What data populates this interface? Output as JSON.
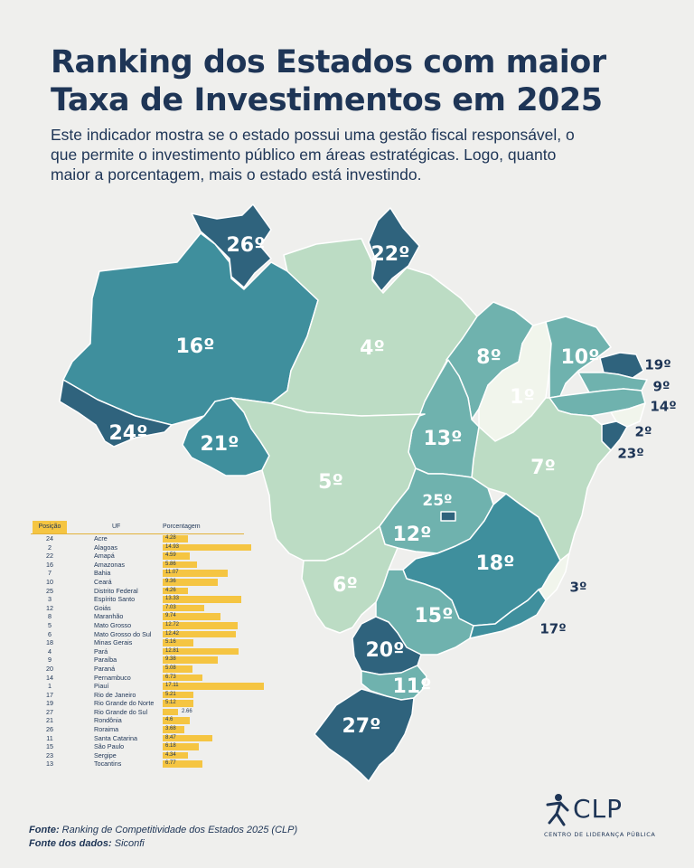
{
  "header": {
    "title_line1": "Ranking dos Estados com maior",
    "title_line2": "Taxa de Investimentos em 2025",
    "subtitle_line1": "Este indicador mostra se o estado possui uma gestão fiscal responsável, o",
    "subtitle_line2": "que permite o investimento público em áreas estratégicas. Logo, quanto",
    "subtitle_line3": "maior a porcentagem, mais o estado está investindo."
  },
  "colors": {
    "rank_1_5": "#f1f5ec",
    "rank_light": "#bcdcc4",
    "rank_mid": "#6fb2ae",
    "rank_teal": "#3f8f9d",
    "rank_dark": "#2f637d",
    "table_bar": "#f5c542",
    "title": "#1e3556"
  },
  "map_labels": [
    {
      "state": "Roraima",
      "label": "26º"
    },
    {
      "state": "Amapá",
      "label": "22º"
    },
    {
      "state": "Amazonas",
      "label": "16º"
    },
    {
      "state": "Pará",
      "label": "4º"
    },
    {
      "state": "Maranhão",
      "label": "8º"
    },
    {
      "state": "Ceará",
      "label": "10º"
    },
    {
      "state": "Rio Grande do Norte",
      "label": "19º"
    },
    {
      "state": "Paraíba",
      "label": "9º"
    },
    {
      "state": "Pernambuco",
      "label": "14º"
    },
    {
      "state": "Alagoas",
      "label": "2º"
    },
    {
      "state": "Sergipe",
      "label": "23º"
    },
    {
      "state": "Piauí",
      "label": "1º"
    },
    {
      "state": "Acre",
      "label": "24º"
    },
    {
      "state": "Rondônia",
      "label": "21º"
    },
    {
      "state": "Tocantins",
      "label": "13º"
    },
    {
      "state": "Bahia",
      "label": "7º"
    },
    {
      "state": "Mato Grosso",
      "label": "5º"
    },
    {
      "state": "Distrito Federal",
      "label": "25º"
    },
    {
      "state": "Goiás",
      "label": "12º"
    },
    {
      "state": "Minas Gerais",
      "label": "18º"
    },
    {
      "state": "Espírito Santo",
      "label": "3º"
    },
    {
      "state": "Mato Grosso do Sul",
      "label": "6º"
    },
    {
      "state": "São Paulo",
      "label": "15º"
    },
    {
      "state": "Rio de Janeiro",
      "label": "17º"
    },
    {
      "state": "Paraná",
      "label": "20º"
    },
    {
      "state": "Santa Catarina",
      "label": "11º"
    },
    {
      "state": "Rio Grande do Sul",
      "label": "27º"
    }
  ],
  "chart_data": {
    "type": "table",
    "columns": [
      "Posição",
      "UF",
      "Porcentagem"
    ],
    "rows": [
      {
        "pos": "24",
        "uf": "Acre",
        "value": 4.28
      },
      {
        "pos": "2",
        "uf": "Alagoas",
        "value": 14.93
      },
      {
        "pos": "22",
        "uf": "Amapá",
        "value": 4.59
      },
      {
        "pos": "16",
        "uf": "Amazonas",
        "value": 5.86
      },
      {
        "pos": "7",
        "uf": "Bahia",
        "value": 11.07
      },
      {
        "pos": "10",
        "uf": "Ceará",
        "value": 9.36
      },
      {
        "pos": "25",
        "uf": "Distrito Federal",
        "value": 4.26
      },
      {
        "pos": "3",
        "uf": "Espírito Santo",
        "value": 13.33
      },
      {
        "pos": "12",
        "uf": "Goiás",
        "value": 7.03
      },
      {
        "pos": "8",
        "uf": "Maranhão",
        "value": 9.74
      },
      {
        "pos": "5",
        "uf": "Mato Grosso",
        "value": 12.72
      },
      {
        "pos": "6",
        "uf": "Mato Grosso do Sul",
        "value": 12.42
      },
      {
        "pos": "18",
        "uf": "Minas Gerais",
        "value": 5.16
      },
      {
        "pos": "4",
        "uf": "Pará",
        "value": 12.81
      },
      {
        "pos": "9",
        "uf": "Paraíba",
        "value": 9.38
      },
      {
        "pos": "20",
        "uf": "Paraná",
        "value": 5.08
      },
      {
        "pos": "14",
        "uf": "Pernambuco",
        "value": 6.73
      },
      {
        "pos": "1",
        "uf": "Piauí",
        "value": 17.11
      },
      {
        "pos": "17",
        "uf": "Rio de Janeiro",
        "value": 5.21
      },
      {
        "pos": "19",
        "uf": "Rio Grande do Norte",
        "value": 5.12
      },
      {
        "pos": "27",
        "uf": "Rio Grande do Sul",
        "value": 2.66
      },
      {
        "pos": "21",
        "uf": "Rondônia",
        "value": 4.6
      },
      {
        "pos": "26",
        "uf": "Roraima",
        "value": 3.68
      },
      {
        "pos": "11",
        "uf": "Santa Catarina",
        "value": 8.47
      },
      {
        "pos": "15",
        "uf": "São Paulo",
        "value": 6.18
      },
      {
        "pos": "23",
        "uf": "Sergipe",
        "value": 4.34
      },
      {
        "pos": "13",
        "uf": "Tocantins",
        "value": 6.77
      }
    ],
    "value_max": 17.11
  },
  "footer": {
    "source_label": "Fonte:",
    "source_text": "Ranking de Competitividade dos Estados 2025 (CLP)",
    "data_label": "Fonte dos dados:",
    "data_text": "Siconfi",
    "logo_text": "CLP",
    "logo_subtitle": "CENTRO DE LIDERANÇA PÚBLICA"
  }
}
